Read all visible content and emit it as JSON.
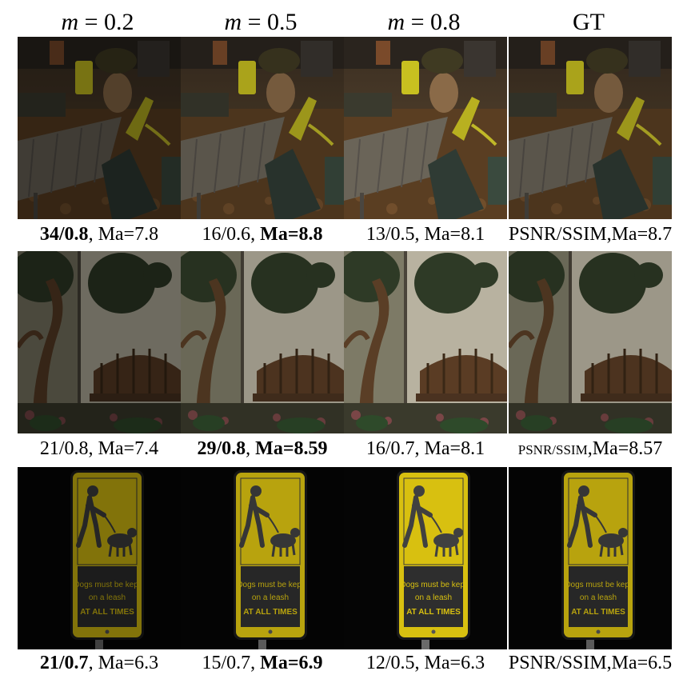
{
  "headers": [
    {
      "var": "m",
      "op": " = ",
      "val": "0.2"
    },
    {
      "var": "m",
      "op": " = ",
      "val": "0.5"
    },
    {
      "var": "m",
      "op": " = ",
      "val": "0.8"
    },
    {
      "var": "",
      "op": "",
      "val": "GT"
    }
  ],
  "rows": [
    {
      "scene": "night-patio-chairs",
      "captions": [
        {
          "parts": [
            {
              "t": "34/0.8",
              "b": true
            },
            {
              "t": ", Ma=7.8",
              "b": false
            }
          ]
        },
        {
          "parts": [
            {
              "t": "16/0.6, ",
              "b": false
            },
            {
              "t": "Ma=8.8",
              "b": true
            }
          ]
        },
        {
          "parts": [
            {
              "t": "13/0.5, Ma=8.1",
              "b": false
            }
          ]
        },
        {
          "parts": [
            {
              "t": "PSNR/SSIM,Ma=8.7",
              "b": false
            }
          ]
        }
      ]
    },
    {
      "scene": "tree-mural-bench",
      "captions": [
        {
          "parts": [
            {
              "t": "21/0.8, Ma=7.4",
              "b": false
            }
          ]
        },
        {
          "parts": [
            {
              "t": "29/0.8",
              "b": true
            },
            {
              "t": ", ",
              "b": false
            },
            {
              "t": "Ma=8.59",
              "b": true
            }
          ]
        },
        {
          "parts": [
            {
              "t": "16/0.7, Ma=8.1",
              "b": false
            }
          ]
        },
        {
          "parts": [
            {
              "t": "PSNR/SSIM",
              "b": false,
              "small": true
            },
            {
              "t": ",Ma=8.57",
              "b": false
            }
          ]
        }
      ]
    },
    {
      "scene": "dog-leash-sign",
      "sign_text": [
        "Dogs must be kept",
        "on a leash",
        "AT ALL TIMES"
      ],
      "captions": [
        {
          "parts": [
            {
              "t": "21/0.7",
              "b": true
            },
            {
              "t": ", Ma=6.3",
              "b": false
            }
          ]
        },
        {
          "parts": [
            {
              "t": "15/0.7, ",
              "b": false
            },
            {
              "t": "Ma=6.9",
              "b": true
            }
          ]
        },
        {
          "parts": [
            {
              "t": "12/0.5, Ma=6.3",
              "b": false
            }
          ]
        },
        {
          "parts": [
            {
              "t": "PSNR/SSIM,Ma=6.5",
              "b": false
            }
          ]
        }
      ]
    }
  ],
  "brightness": [
    0.6,
    0.85,
    1.0,
    0.85
  ]
}
